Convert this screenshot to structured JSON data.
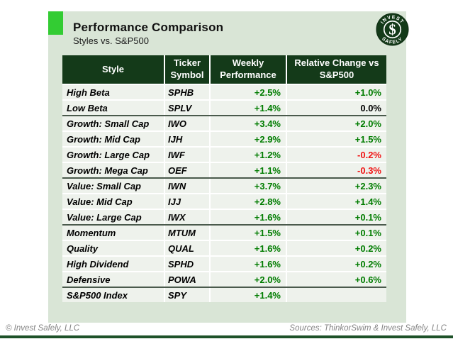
{
  "header": {
    "title": "Performance Comparison",
    "subtitle": "Styles vs. S&P500"
  },
  "logo": {
    "top_text": "INVEST",
    "bottom_text": "SAFELY",
    "symbol": "$"
  },
  "table": {
    "headers": [
      "Style",
      "Ticker Symbol",
      "Weekly Performance",
      "Relative Change vs S&P500"
    ],
    "rows": [
      {
        "style": "High Beta",
        "ticker": "SPHB",
        "weekly": "+2.5%",
        "weekly_tone": "positive",
        "relative": "+1.0%",
        "relative_tone": "positive",
        "group_end": false
      },
      {
        "style": "Low Beta",
        "ticker": "SPLV",
        "weekly": "+1.4%",
        "weekly_tone": "positive",
        "relative": "0.0%",
        "relative_tone": "neutral",
        "group_end": true
      },
      {
        "style": "Growth: Small Cap",
        "ticker": "IWO",
        "weekly": "+3.4%",
        "weekly_tone": "positive",
        "relative": "+2.0%",
        "relative_tone": "positive",
        "group_end": false
      },
      {
        "style": "Growth: Mid Cap",
        "ticker": "IJH",
        "weekly": "+2.9%",
        "weekly_tone": "positive",
        "relative": "+1.5%",
        "relative_tone": "positive",
        "group_end": false
      },
      {
        "style": "Growth: Large Cap",
        "ticker": "IWF",
        "weekly": "+1.2%",
        "weekly_tone": "positive",
        "relative": "-0.2%",
        "relative_tone": "negative",
        "group_end": false
      },
      {
        "style": "Growth: Mega Cap",
        "ticker": "OEF",
        "weekly": "+1.1%",
        "weekly_tone": "positive",
        "relative": "-0.3%",
        "relative_tone": "negative",
        "group_end": true
      },
      {
        "style": "Value: Small Cap",
        "ticker": "IWN",
        "weekly": "+3.7%",
        "weekly_tone": "positive",
        "relative": "+2.3%",
        "relative_tone": "positive",
        "group_end": false
      },
      {
        "style": "Value: Mid Cap",
        "ticker": "IJJ",
        "weekly": "+2.8%",
        "weekly_tone": "positive",
        "relative": "+1.4%",
        "relative_tone": "positive",
        "group_end": false
      },
      {
        "style": "Value: Large Cap",
        "ticker": "IWX",
        "weekly": "+1.6%",
        "weekly_tone": "positive",
        "relative": "+0.1%",
        "relative_tone": "positive",
        "group_end": true
      },
      {
        "style": "Momentum",
        "ticker": "MTUM",
        "weekly": "+1.5%",
        "weekly_tone": "positive",
        "relative": "+0.1%",
        "relative_tone": "positive",
        "group_end": false
      },
      {
        "style": "Quality",
        "ticker": "QUAL",
        "weekly": "+1.6%",
        "weekly_tone": "positive",
        "relative": "+0.2%",
        "relative_tone": "positive",
        "group_end": false
      },
      {
        "style": "High Dividend",
        "ticker": "SPHD",
        "weekly": "+1.6%",
        "weekly_tone": "positive",
        "relative": "+0.2%",
        "relative_tone": "positive",
        "group_end": false
      },
      {
        "style": "Defensive",
        "ticker": "POWA",
        "weekly": "+2.0%",
        "weekly_tone": "positive",
        "relative": "+0.6%",
        "relative_tone": "positive",
        "group_end": true
      },
      {
        "style": "S&P500 Index",
        "ticker": "SPY",
        "weekly": "+1.4%",
        "weekly_tone": "positive",
        "relative": "",
        "relative_tone": "neutral",
        "group_end": false
      }
    ]
  },
  "footer": {
    "copyright": "© Invest Safely, LLC",
    "sources": "Sources: ThinkorSwim & Invest Safely, LLC"
  },
  "colors": {
    "header_bg": "#143a19",
    "panel_bg": "#d9e5d6",
    "row_bg": "#eef2ec",
    "accent_green": "#33cc33",
    "positive": "#007c00",
    "negative": "#f01414",
    "neutral": "#000000",
    "group_divider": "#4a5a4c",
    "footer_text": "#848484",
    "bottom_bar": "#1e5229"
  },
  "chart_data": {
    "type": "table",
    "title": "Performance Comparison",
    "subtitle": "Styles vs. S&P500",
    "columns": [
      "Style",
      "Ticker Symbol",
      "Weekly Performance",
      "Relative Change vs S&P500"
    ],
    "rows": [
      [
        "High Beta",
        "SPHB",
        "+2.5%",
        "+1.0%"
      ],
      [
        "Low Beta",
        "SPLV",
        "+1.4%",
        "0.0%"
      ],
      [
        "Growth: Small Cap",
        "IWO",
        "+3.4%",
        "+2.0%"
      ],
      [
        "Growth: Mid Cap",
        "IJH",
        "+2.9%",
        "+1.5%"
      ],
      [
        "Growth: Large Cap",
        "IWF",
        "+1.2%",
        "-0.2%"
      ],
      [
        "Growth: Mega Cap",
        "OEF",
        "+1.1%",
        "-0.3%"
      ],
      [
        "Value: Small Cap",
        "IWN",
        "+3.7%",
        "+2.3%"
      ],
      [
        "Value: Mid Cap",
        "IJJ",
        "+2.8%",
        "+1.4%"
      ],
      [
        "Value: Large Cap",
        "IWX",
        "+1.6%",
        "+0.1%"
      ],
      [
        "Momentum",
        "MTUM",
        "+1.5%",
        "+0.1%"
      ],
      [
        "Quality",
        "QUAL",
        "+1.6%",
        "+0.2%"
      ],
      [
        "High Dividend",
        "SPHD",
        "+1.6%",
        "+0.2%"
      ],
      [
        "Defensive",
        "POWA",
        "+2.0%",
        "+0.6%"
      ],
      [
        "S&P500 Index",
        "SPY",
        "+1.4%",
        ""
      ]
    ]
  }
}
